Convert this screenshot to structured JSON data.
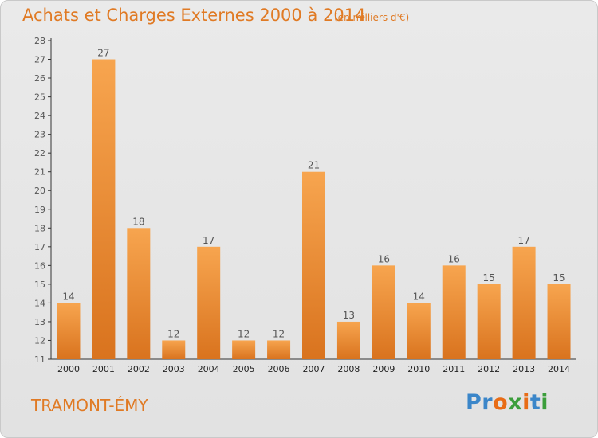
{
  "header": {
    "title": "Achats et Charges Externes 2000 à 2014",
    "unit": "(en milliers d'€)"
  },
  "footer": {
    "city": "TRAMONT-ÉMY",
    "logo_letters": [
      "P",
      "r",
      "o",
      "x",
      "i",
      "t",
      "i"
    ],
    "logo_colors": [
      "#3b86c9",
      "#3b86c9",
      "#e86c16",
      "#3b9e3b",
      "#e86c16",
      "#3b86c9",
      "#3b9e3b"
    ]
  },
  "chart_data": {
    "type": "bar",
    "categories": [
      "2000",
      "2001",
      "2002",
      "2003",
      "2004",
      "2005",
      "2006",
      "2007",
      "2008",
      "2009",
      "2010",
      "2011",
      "2012",
      "2013",
      "2014"
    ],
    "values": [
      14,
      27,
      18,
      12,
      17,
      12,
      12,
      21,
      13,
      16,
      14,
      16,
      15,
      17,
      15
    ],
    "ylim": [
      11,
      28
    ],
    "yticks": [
      11,
      12,
      13,
      14,
      15,
      16,
      17,
      18,
      19,
      20,
      21,
      22,
      23,
      24,
      25,
      26,
      27,
      28
    ],
    "grid": false,
    "bar_color_top": "#f7a54f",
    "bar_color_bottom": "#d9731e",
    "text_color": "#555555",
    "accent_color": "#e07a24"
  }
}
